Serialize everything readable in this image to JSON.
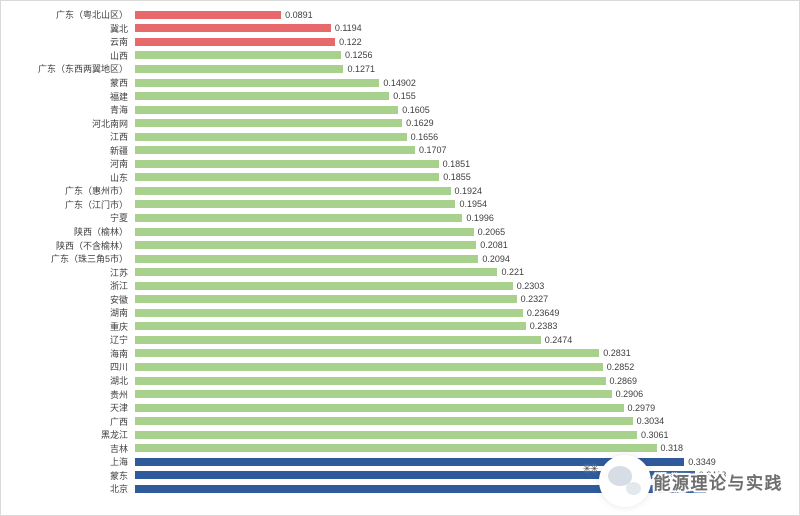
{
  "chart_data": {
    "type": "bar",
    "orientation": "horizontal",
    "title": "",
    "xlabel": "",
    "ylabel": "",
    "grid": false,
    "legend": false,
    "xlim": [
      0,
      0.36
    ],
    "categories": [
      "广东（粤北山区）",
      "冀北",
      "云南",
      "山西",
      "广东（东西两翼地区）",
      "蒙西",
      "福建",
      "青海",
      "河北南网",
      "江西",
      "新疆",
      "河南",
      "山东",
      "广东（惠州市）",
      "广东（江门市）",
      "宁夏",
      "陕西（榆林）",
      "陕西（不含榆林）",
      "广东（珠三角5市）",
      "江苏",
      "浙江",
      "安徽",
      "湖南",
      "重庆",
      "辽宁",
      "海南",
      "四川",
      "湖北",
      "贵州",
      "天津",
      "广西",
      "黑龙江",
      "吉林",
      "上海",
      "蒙东",
      "北京"
    ],
    "values": [
      0.0891,
      0.1194,
      0.122,
      0.1256,
      0.1271,
      0.14902,
      0.155,
      0.1605,
      0.1629,
      0.1656,
      0.1707,
      0.1851,
      0.1855,
      0.1924,
      0.1954,
      0.1996,
      0.2065,
      0.2081,
      0.2094,
      0.221,
      0.2303,
      0.2327,
      0.23649,
      0.2383,
      0.2474,
      0.2831,
      0.2852,
      0.2869,
      0.2906,
      0.2979,
      0.3034,
      0.3061,
      0.318,
      0.3349,
      0.3413,
      0.348
    ],
    "value_labels": [
      "0.0891",
      "0.1194",
      "0.122",
      "0.1256",
      "0.1271",
      "0.14902",
      "0.155",
      "0.1605",
      "0.1629",
      "0.1656",
      "0.1707",
      "0.1851",
      "0.1855",
      "0.1924",
      "0.1954",
      "0.1996",
      "0.2065",
      "0.2081",
      "0.2094",
      "0.221",
      "0.2303",
      "0.2327",
      "0.23649",
      "0.2383",
      "0.2474",
      "0.2831",
      "0.2852",
      "0.2869",
      "0.2906",
      "0.2979",
      "0.3034",
      "0.3061",
      "0.318",
      "0.3349",
      "0.3413",
      ""
    ],
    "bar_color_groups": [
      "red",
      "red",
      "red",
      "green",
      "green",
      "green",
      "green",
      "green",
      "green",
      "green",
      "green",
      "green",
      "green",
      "green",
      "green",
      "green",
      "green",
      "green",
      "green",
      "green",
      "green",
      "green",
      "green",
      "green",
      "green",
      "green",
      "green",
      "green",
      "green",
      "green",
      "green",
      "green",
      "green",
      "blue",
      "blue",
      "blue"
    ],
    "palette": {
      "red": "#e8696b",
      "green": "#a9d18e",
      "blue": "#2f5b9d"
    }
  },
  "watermark": {
    "sparkles": "✳✳",
    "text": "能源理论与实践"
  }
}
